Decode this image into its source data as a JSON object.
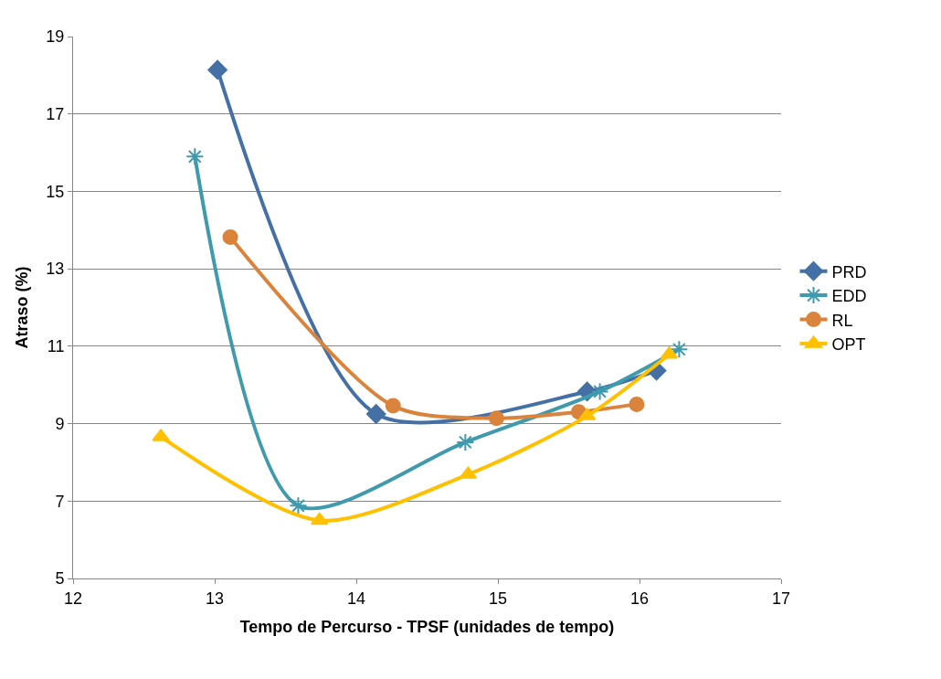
{
  "chart_data": {
    "type": "line",
    "xlabel": "Tempo de Percurso - TPSF (unidades de tempo)",
    "ylabel": "Atraso (%)",
    "xlim": [
      12,
      17
    ],
    "xticks": [
      12,
      13,
      14,
      15,
      16,
      17
    ],
    "ylim": [
      5,
      19
    ],
    "yticks": [
      5,
      7,
      9,
      11,
      13,
      15,
      17,
      19
    ],
    "grid": "y",
    "legend": "right",
    "series": [
      {
        "name": "PRD",
        "color": "#4470a6",
        "marker": "diamond",
        "x": [
          13.02,
          14.14,
          15.63,
          16.12
        ],
        "values": [
          18.14,
          9.25,
          9.83,
          10.37
        ]
      },
      {
        "name": "EDD",
        "color": "#3f9aad",
        "marker": "cross",
        "x": [
          12.86,
          13.59,
          14.77,
          15.72,
          16.28
        ],
        "values": [
          15.9,
          6.88,
          8.52,
          9.83,
          10.92
        ]
      },
      {
        "name": "RL",
        "color": "#da833c",
        "marker": "circle",
        "x": [
          13.11,
          14.26,
          14.99,
          15.57,
          15.98
        ],
        "values": [
          13.82,
          9.46,
          9.14,
          9.3,
          9.5
        ]
      },
      {
        "name": "OPT",
        "color": "#ffc000",
        "marker": "triangle",
        "x": [
          12.62,
          13.74,
          14.79,
          15.63,
          16.21
        ],
        "values": [
          8.66,
          6.5,
          7.69,
          9.2,
          10.79
        ]
      }
    ]
  }
}
